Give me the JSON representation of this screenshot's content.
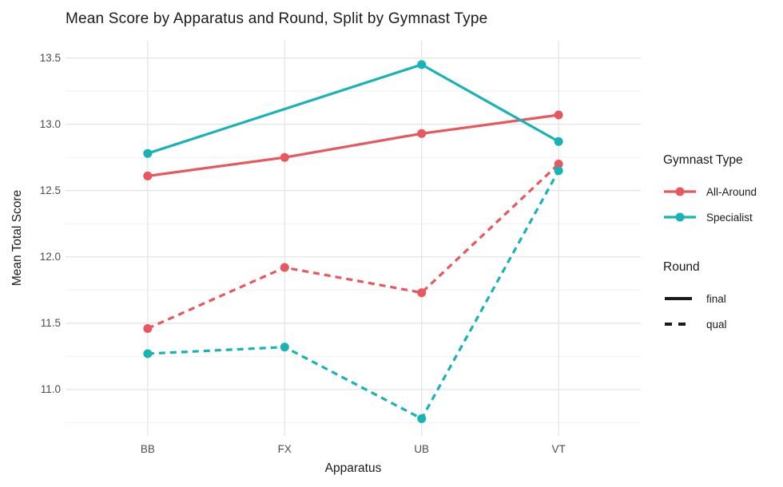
{
  "chart_data": {
    "type": "line",
    "title": "Mean Score by Apparatus and Round, Split by Gymnast Type",
    "xlabel": "Apparatus",
    "ylabel": "Mean Total Score",
    "categories": [
      "BB",
      "FX",
      "UB",
      "VT"
    ],
    "yticks": [
      11.0,
      11.5,
      12.0,
      12.5,
      13.0,
      13.5
    ],
    "yticks_minor": [
      10.75,
      11.25,
      11.75,
      12.25,
      12.75,
      13.25
    ],
    "ylim": [
      10.65,
      13.63
    ],
    "grid": true,
    "legend_position": "right",
    "series": [
      {
        "name": "All-Around final",
        "gymnast_type": "All-Around",
        "round": "final",
        "color": "#E8575E",
        "dash": "solid",
        "points": [
          {
            "x": "BB",
            "y": 12.61
          },
          {
            "x": "FX",
            "y": 12.75
          },
          {
            "x": "UB",
            "y": 12.93
          },
          {
            "x": "VT",
            "y": 13.07
          }
        ]
      },
      {
        "name": "All-Around qual",
        "gymnast_type": "All-Around",
        "round": "qual",
        "color": "#E8575E",
        "dash": "dashed",
        "points": [
          {
            "x": "BB",
            "y": 11.46
          },
          {
            "x": "FX",
            "y": 11.92
          },
          {
            "x": "UB",
            "y": 11.73
          },
          {
            "x": "VT",
            "y": 12.7
          }
        ]
      },
      {
        "name": "Specialist final",
        "gymnast_type": "Specialist",
        "round": "final",
        "color": "#17B3B5",
        "dash": "solid",
        "points": [
          {
            "x": "BB",
            "y": 12.78
          },
          {
            "x": "UB",
            "y": 13.45
          },
          {
            "x": "VT",
            "y": 12.87
          }
        ]
      },
      {
        "name": "Specialist qual",
        "gymnast_type": "Specialist",
        "round": "qual",
        "color": "#17B3B5",
        "dash": "dashed",
        "points": [
          {
            "x": "BB",
            "y": 11.27
          },
          {
            "x": "FX",
            "y": 11.32
          },
          {
            "x": "UB",
            "y": 10.78
          },
          {
            "x": "VT",
            "y": 12.65
          }
        ]
      }
    ]
  },
  "legend": {
    "gymnast_type": {
      "header": "Gymnast Type",
      "items": [
        {
          "label": "All-Around",
          "color": "#E8575E",
          "dash": "solid"
        },
        {
          "label": "Specialist",
          "color": "#17B3B5",
          "dash": "solid"
        }
      ]
    },
    "round": {
      "header": "Round",
      "items": [
        {
          "label": "final",
          "dash": "solid"
        },
        {
          "label": "qual",
          "dash": "dashed"
        }
      ]
    }
  },
  "colors": {
    "all_around": "#E8575E",
    "specialist": "#17B3B5",
    "grid_major": "#E5E5E5",
    "grid_minor": "#F1F1F1",
    "axis_text": "#4d4d4d",
    "title_text": "#1a1a1a",
    "legend_key": "#1a1a1a",
    "background": "#ffffff"
  }
}
